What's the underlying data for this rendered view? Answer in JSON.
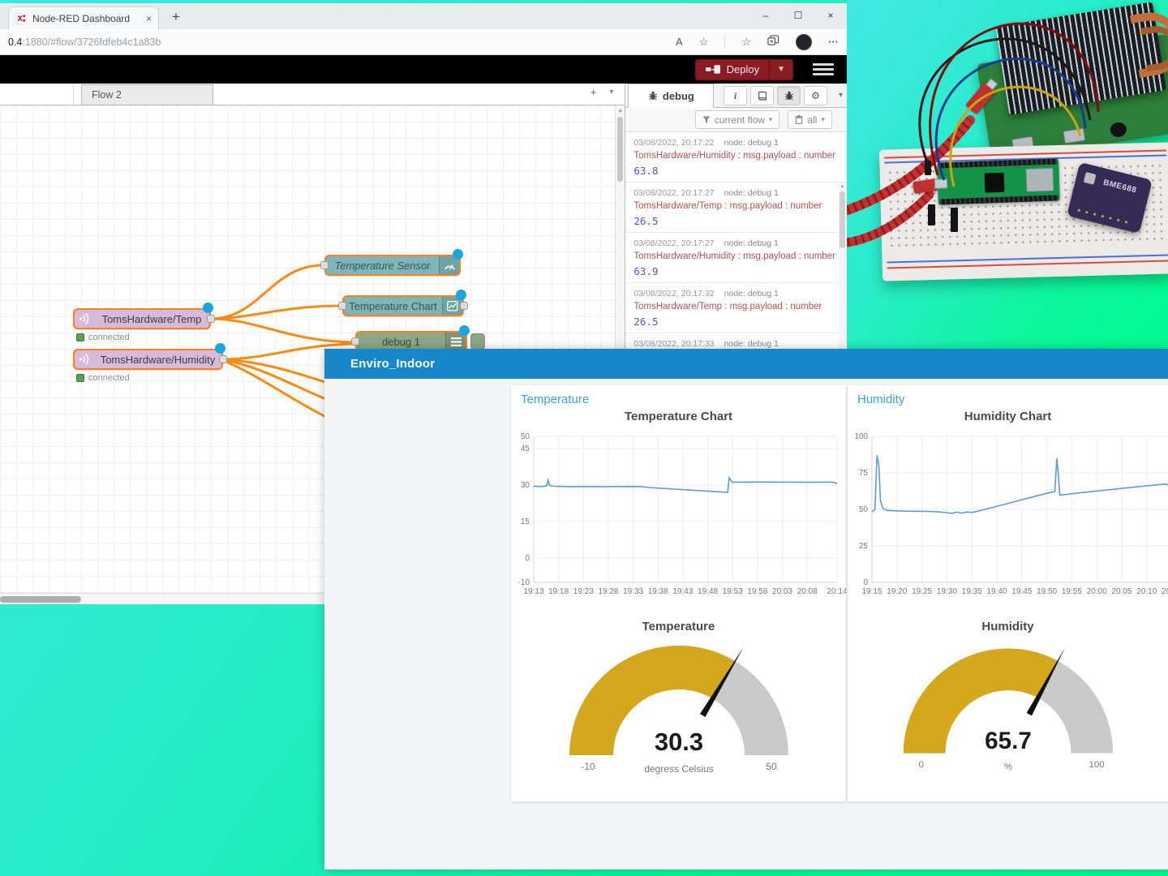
{
  "browser": {
    "tab_title": "Node-RED Dashboard",
    "tab_close": "×",
    "new_tab": "+",
    "url_host": "0.4",
    "url_rest": ":1880/#flow/3726fdfeb4c1a83b",
    "read_aloud": "A",
    "dots": "···",
    "minimize": "–",
    "maximize": "☐",
    "close": "×"
  },
  "nodered": {
    "deploy_label": "Deploy",
    "deploy_caret": "▼",
    "flow_tab": "Flow 2",
    "add_flow": "+",
    "flow_list_caret": "▾",
    "nodes": {
      "mqtt_temp": {
        "label": "TomsHardware/Temp",
        "status": "connected"
      },
      "mqtt_humidity": {
        "label": "TomsHardware/Humidity",
        "status": "connected"
      },
      "gauge_node": {
        "label": "Temperature Sensor"
      },
      "chart_node": {
        "label": "Temperature Chart"
      },
      "debug_node": {
        "label": "debug 1"
      }
    },
    "debug_panel": {
      "tab": "debug",
      "info_btn": "i",
      "gear": "⚙",
      "caret": "▾",
      "filter_flow": "current flow",
      "filter_all": "all",
      "messages": [
        {
          "time": "03/08/2022, 20:17:22",
          "node": "node: debug 1",
          "topic": "TomsHardware/Humidity : msg.payload : number",
          "value": "63.8"
        },
        {
          "time": "03/08/2022, 20:17:27",
          "node": "node: debug 1",
          "topic": "TomsHardware/Temp : msg.payload : number",
          "value": "26.5"
        },
        {
          "time": "03/08/2022, 20:17:27",
          "node": "node: debug 1",
          "topic": "TomsHardware/Humidity : msg.payload : number",
          "value": "63.9"
        },
        {
          "time": "03/08/2022, 20:17:32",
          "node": "node: debug 1",
          "topic": "TomsHardware/Temp : msg.payload : number",
          "value": "26.5"
        },
        {
          "time": "03/08/2022, 20:17:33",
          "node": "node: debug 1",
          "topic": "",
          "value": ""
        }
      ]
    }
  },
  "dashboard": {
    "title": "Enviro_Indoor",
    "accent": "#1787c9",
    "groups": [
      {
        "label": "Temperature"
      },
      {
        "label": "Humidity"
      }
    ],
    "gauges": [
      {
        "title": "Temperature",
        "value": "30.3",
        "value_num": 30.3,
        "units": "degress Celsius",
        "min": "-10",
        "max": "50",
        "min_num": -10,
        "max_num": 50
      },
      {
        "title": "Humidity",
        "value": "65.7",
        "value_num": 65.7,
        "units": "%",
        "min": "0",
        "max": "100",
        "min_num": 0,
        "max_num": 100
      }
    ],
    "gauge_colors": {
      "fill": "#d4a71c",
      "rest": "#c9c9c9",
      "needle": "#111111"
    }
  },
  "chart_data": [
    {
      "type": "line",
      "title": "Temperature Chart",
      "x_axis_note": "time of day, points given as minutes after 19:13",
      "x_tick_labels": [
        "19:13",
        "19:18",
        "19:23",
        "19:28",
        "19:33",
        "19:38",
        "19:43",
        "19:48",
        "19:53",
        "19:58",
        "20:03",
        "20:08",
        "20:14"
      ],
      "x_tick_minutes": [
        0,
        5,
        10,
        15,
        20,
        25,
        30,
        35,
        40,
        45,
        50,
        55,
        61
      ],
      "y_ticks": [
        50,
        45,
        30,
        15,
        0,
        -10
      ],
      "ylim": [
        -10,
        50
      ],
      "grid": true,
      "series": [
        {
          "name": "Temperature",
          "color": "#5b9bd5",
          "points": [
            [
              0,
              29.5
            ],
            [
              1.5,
              29.4
            ],
            [
              2.6,
              29.6
            ],
            [
              2.9,
              32.0
            ],
            [
              3.2,
              29.8
            ],
            [
              4,
              29.5
            ],
            [
              6,
              29.4
            ],
            [
              8,
              29.3
            ],
            [
              10,
              29.4
            ],
            [
              12,
              29.35
            ],
            [
              14,
              29.3
            ],
            [
              16,
              29.4
            ],
            [
              18,
              29.35
            ],
            [
              20,
              29.4
            ],
            [
              22,
              29.3
            ],
            [
              23,
              29.0
            ],
            [
              39,
              27.0
            ],
            [
              39.3,
              33.0
            ],
            [
              39.9,
              31.2
            ],
            [
              43,
              31.2
            ],
            [
              46,
              31.25
            ],
            [
              49,
              31.2
            ],
            [
              52,
              31.2
            ],
            [
              55,
              31.15
            ],
            [
              58,
              31.2
            ],
            [
              60,
              31.2
            ],
            [
              61,
              30.6
            ]
          ]
        }
      ]
    },
    {
      "type": "line",
      "title": "Humidity Chart",
      "x_axis_note": "time of day, points given as minutes after 19:15",
      "x_tick_labels": [
        "19:15",
        "19:20",
        "19:25",
        "19:30",
        "19:35",
        "19:40",
        "19:45",
        "19:50",
        "19:55",
        "20:00",
        "20:05",
        "20:10",
        "20:15"
      ],
      "x_tick_minutes": [
        0,
        5,
        10,
        15,
        20,
        25,
        30,
        35,
        40,
        45,
        50,
        55,
        60
      ],
      "y_ticks": [
        100,
        75,
        50,
        25,
        0
      ],
      "ylim": [
        0,
        100
      ],
      "grid": true,
      "series": [
        {
          "name": "Humidity",
          "color": "#5b9bd5",
          "points": [
            [
              0,
              48.2
            ],
            [
              0.6,
              50
            ],
            [
              1.0,
              87
            ],
            [
              1.4,
              80
            ],
            [
              1.7,
              56
            ],
            [
              2.2,
              50.5
            ],
            [
              3,
              49.3
            ],
            [
              5,
              49
            ],
            [
              7,
              48.8
            ],
            [
              9,
              48.7
            ],
            [
              11,
              48.6
            ],
            [
              13,
              48.4
            ],
            [
              15,
              47.8
            ],
            [
              16,
              47.3
            ],
            [
              17,
              48.1
            ],
            [
              18,
              47.4
            ],
            [
              19,
              48.2
            ],
            [
              20,
              47.9
            ],
            [
              21,
              48.6
            ],
            [
              26,
              53
            ],
            [
              31,
              57.5
            ],
            [
              35,
              61
            ],
            [
              36.6,
              62.2
            ],
            [
              37,
              85
            ],
            [
              37.3,
              74
            ],
            [
              37.6,
              59.8
            ],
            [
              39,
              60.3
            ],
            [
              42,
              61.5
            ],
            [
              45,
              62.6
            ],
            [
              48,
              63.6
            ],
            [
              51,
              64.8
            ],
            [
              54,
              65.8
            ],
            [
              57,
              66.8
            ],
            [
              58.6,
              67.4
            ],
            [
              59.3,
              66.8
            ]
          ]
        }
      ]
    }
  ],
  "photo": {
    "sensor_label": "BME688"
  }
}
